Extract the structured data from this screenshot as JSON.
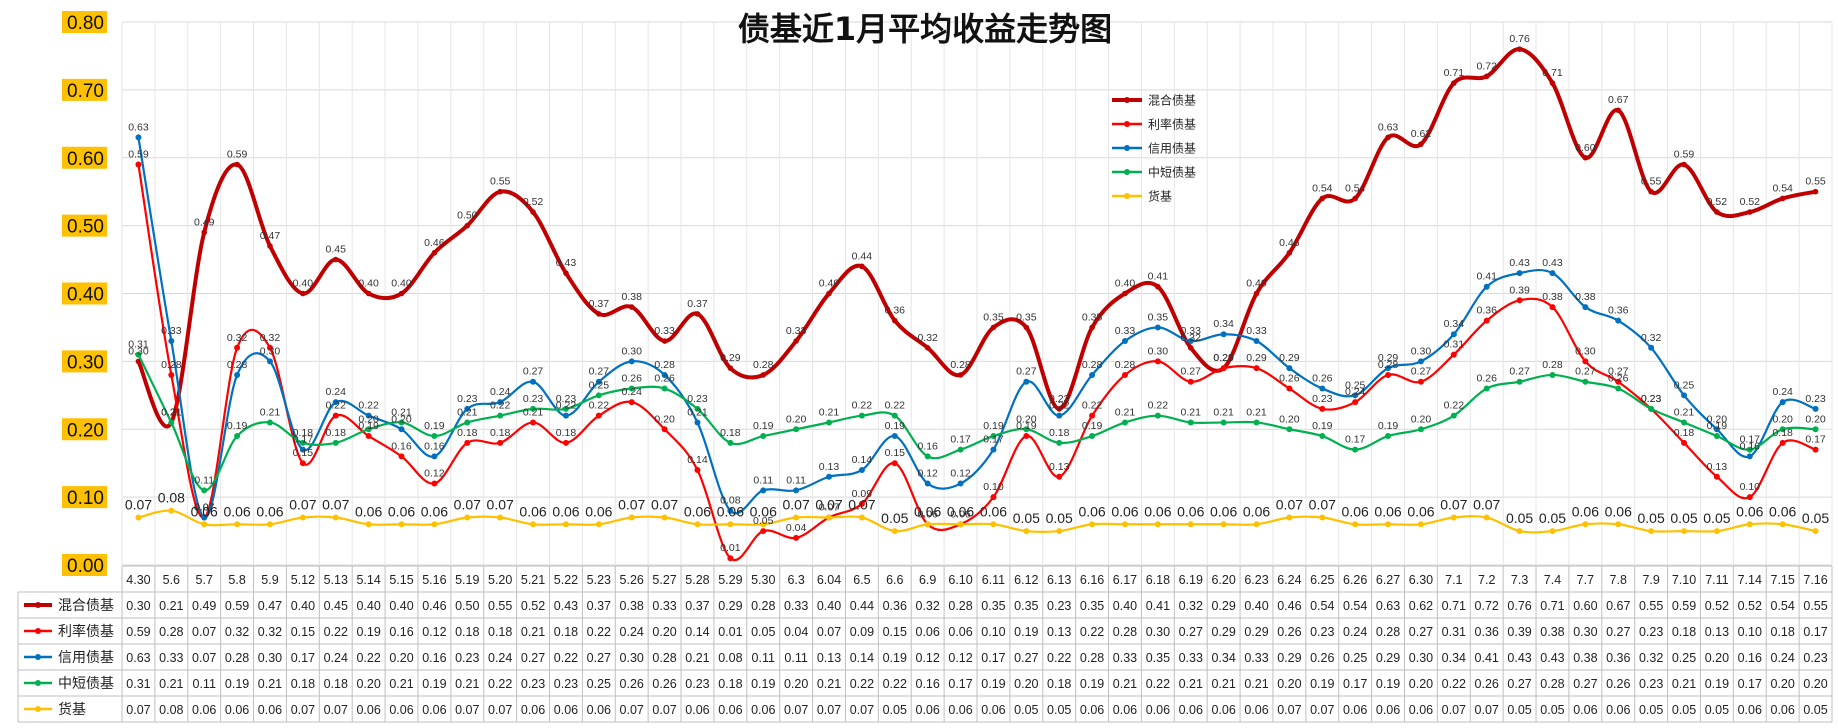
{
  "chart_data": {
    "type": "line",
    "title": "债基近1月平均收益走势图",
    "ylim": [
      0,
      0.8
    ],
    "y_ticks": [
      "0.00",
      "0.10",
      "0.20",
      "0.30",
      "0.40",
      "0.50",
      "0.60",
      "0.70",
      "0.80"
    ],
    "y_tick_values": [
      0,
      0.1,
      0.2,
      0.3,
      0.4,
      0.5,
      0.6,
      0.7,
      0.8
    ],
    "grid": true,
    "legend_position": "top-center",
    "data_table": true,
    "categories": [
      "4.30",
      "5.6",
      "5.7",
      "5.8",
      "5.9",
      "5.12",
      "5.13",
      "5.14",
      "5.15",
      "5.16",
      "5.19",
      "5.20",
      "5.21",
      "5.22",
      "5.23",
      "5.26",
      "5.27",
      "5.28",
      "5.29",
      "5.30",
      "6.3",
      "6.04",
      "6.5",
      "6.6",
      "6.9",
      "6.10",
      "6.11",
      "6.12",
      "6.13",
      "6.16",
      "6.17",
      "6.18",
      "6.19",
      "6.20",
      "6.23",
      "6.24",
      "6.25",
      "6.26",
      "6.27",
      "6.30",
      "7.1",
      "7.2",
      "7.3",
      "7.4",
      "7.7",
      "7.8",
      "7.9",
      "7.10",
      "7.11",
      "7.14",
      "7.15",
      "7.16"
    ],
    "series": [
      {
        "name": "混合债基",
        "color": "#C00000",
        "values": [
          0.3,
          0.21,
          0.49,
          0.59,
          0.47,
          0.4,
          0.45,
          0.4,
          0.4,
          0.46,
          0.5,
          0.55,
          0.52,
          0.43,
          0.37,
          0.38,
          0.33,
          0.37,
          0.29,
          0.28,
          0.33,
          0.4,
          0.44,
          0.36,
          0.32,
          0.28,
          0.35,
          0.35,
          0.23,
          0.35,
          0.4,
          0.41,
          0.32,
          0.29,
          0.4,
          0.46,
          0.54,
          0.54,
          0.63,
          0.62,
          0.71,
          0.72,
          0.76,
          0.71,
          0.6,
          0.67,
          0.55,
          0.59,
          0.52,
          0.52,
          0.54,
          0.55
        ]
      },
      {
        "name": "利率债基",
        "color": "#FF0000",
        "values": [
          0.59,
          0.28,
          0.07,
          0.32,
          0.32,
          0.15,
          0.22,
          0.19,
          0.16,
          0.12,
          0.18,
          0.18,
          0.21,
          0.18,
          0.22,
          0.24,
          0.2,
          0.14,
          0.01,
          0.05,
          0.04,
          0.07,
          0.09,
          0.15,
          0.06,
          0.06,
          0.1,
          0.19,
          0.13,
          0.22,
          0.28,
          0.3,
          0.27,
          0.29,
          0.29,
          0.26,
          0.23,
          0.24,
          0.28,
          0.27,
          0.31,
          0.36,
          0.39,
          0.38,
          0.3,
          0.27,
          0.23,
          0.18,
          0.13,
          0.1,
          0.18,
          0.17
        ]
      },
      {
        "name": "信用债基",
        "color": "#0070C0",
        "values": [
          0.63,
          0.33,
          0.07,
          0.28,
          0.3,
          0.17,
          0.24,
          0.22,
          0.2,
          0.16,
          0.23,
          0.24,
          0.27,
          0.22,
          0.27,
          0.3,
          0.28,
          0.21,
          0.08,
          0.11,
          0.11,
          0.13,
          0.14,
          0.19,
          0.12,
          0.12,
          0.17,
          0.27,
          0.22,
          0.28,
          0.33,
          0.35,
          0.33,
          0.34,
          0.33,
          0.29,
          0.26,
          0.25,
          0.29,
          0.3,
          0.34,
          0.41,
          0.43,
          0.43,
          0.38,
          0.36,
          0.32,
          0.25,
          0.2,
          0.16,
          0.24,
          0.23
        ]
      },
      {
        "name": "中短债基",
        "color": "#00B050",
        "values": [
          0.31,
          0.21,
          0.11,
          0.19,
          0.21,
          0.18,
          0.18,
          0.2,
          0.21,
          0.19,
          0.21,
          0.22,
          0.23,
          0.23,
          0.25,
          0.26,
          0.26,
          0.23,
          0.18,
          0.19,
          0.2,
          0.21,
          0.22,
          0.22,
          0.16,
          0.17,
          0.19,
          0.2,
          0.18,
          0.19,
          0.21,
          0.22,
          0.21,
          0.21,
          0.21,
          0.2,
          0.19,
          0.17,
          0.19,
          0.2,
          0.22,
          0.26,
          0.27,
          0.28,
          0.27,
          0.26,
          0.23,
          0.21,
          0.19,
          0.17,
          0.2,
          0.2
        ]
      },
      {
        "name": "货基",
        "color": "#FFC000",
        "values": [
          0.07,
          0.08,
          0.06,
          0.06,
          0.06,
          0.07,
          0.07,
          0.06,
          0.06,
          0.06,
          0.07,
          0.07,
          0.06,
          0.06,
          0.06,
          0.07,
          0.07,
          0.06,
          0.06,
          0.06,
          0.07,
          0.07,
          0.07,
          0.05,
          0.06,
          0.06,
          0.06,
          0.05,
          0.05,
          0.06,
          0.06,
          0.06,
          0.06,
          0.06,
          0.06,
          0.07,
          0.07,
          0.06,
          0.06,
          0.06,
          0.07,
          0.07,
          0.05,
          0.05,
          0.06,
          0.06,
          0.05,
          0.05,
          0.05,
          0.06,
          0.06,
          0.05
        ]
      }
    ]
  }
}
